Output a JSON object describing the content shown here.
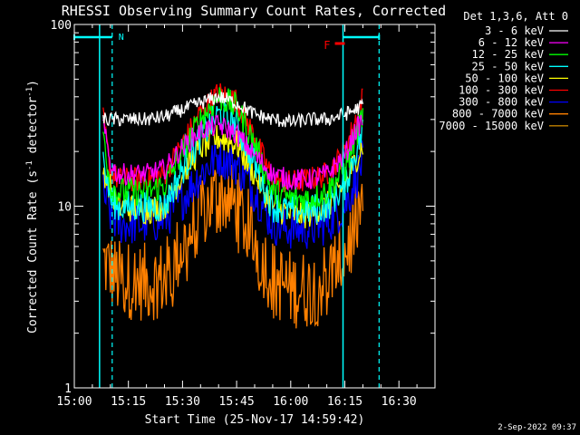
{
  "chart_data": {
    "type": "line",
    "title": "RHESSI Observing Summary Count Rates, Corrected",
    "xlabel": "Start Time (25-Nov-17 14:59:42)",
    "ylabel_main": "Corrected Count Rate (s",
    "ylabel_sup1": "-1",
    "ylabel_mid": " detector",
    "ylabel_sup2": "-1",
    "ylabel_end": ")",
    "yscale": "log",
    "ylim": [
      1,
      100
    ],
    "xlim_minutes": [
      0,
      100
    ],
    "x_ticks": [
      {
        "label": "15:00",
        "minutes": 0
      },
      {
        "label": "15:15",
        "minutes": 15
      },
      {
        "label": "15:30",
        "minutes": 30
      },
      {
        "label": "15:45",
        "minutes": 45
      },
      {
        "label": "16:00",
        "minutes": 60
      },
      {
        "label": "16:15",
        "minutes": 75
      },
      {
        "label": "16:30",
        "minutes": 90
      }
    ],
    "y_ticks": [
      {
        "label": "1",
        "value": 1
      },
      {
        "label": "10",
        "value": 10
      },
      {
        "label": "100",
        "value": 100
      }
    ],
    "legend_title": "Det 1,3,6, Att 0",
    "legend_position": "right",
    "series": [
      {
        "name": "3 - 6 keV",
        "color": "#ffffff",
        "points": [
          [
            8,
            30
          ],
          [
            12,
            30
          ],
          [
            20,
            30
          ],
          [
            25,
            31
          ],
          [
            30,
            34
          ],
          [
            35,
            37
          ],
          [
            40,
            40
          ],
          [
            45,
            37
          ],
          [
            50,
            32
          ],
          [
            55,
            30
          ],
          [
            60,
            29
          ],
          [
            65,
            30
          ],
          [
            70,
            30
          ],
          [
            75,
            32
          ],
          [
            78,
            34
          ],
          [
            80,
            36
          ]
        ]
      },
      {
        "name": "6 - 12 keV",
        "color": "#ff00ff",
        "points": [
          [
            8,
            28
          ],
          [
            10,
            17
          ],
          [
            12,
            15
          ],
          [
            20,
            15
          ],
          [
            25,
            16
          ],
          [
            30,
            21
          ],
          [
            35,
            26
          ],
          [
            40,
            28
          ],
          [
            45,
            25
          ],
          [
            50,
            19
          ],
          [
            55,
            15
          ],
          [
            60,
            14
          ],
          [
            65,
            14
          ],
          [
            70,
            15
          ],
          [
            75,
            19
          ],
          [
            78,
            26
          ],
          [
            80,
            30
          ]
        ]
      },
      {
        "name": "12 - 25 keV",
        "color": "#00ff00",
        "points": [
          [
            8,
            26
          ],
          [
            10,
            13
          ],
          [
            12,
            12
          ],
          [
            20,
            12
          ],
          [
            25,
            13
          ],
          [
            30,
            20
          ],
          [
            35,
            30
          ],
          [
            40,
            40
          ],
          [
            45,
            35
          ],
          [
            50,
            22
          ],
          [
            55,
            12
          ],
          [
            60,
            11
          ],
          [
            65,
            11
          ],
          [
            70,
            12
          ],
          [
            75,
            16
          ],
          [
            78,
            24
          ],
          [
            80,
            32
          ]
        ]
      },
      {
        "name": "25 - 50 keV",
        "color": "#00ffff",
        "points": [
          [
            8,
            18
          ],
          [
            10,
            11
          ],
          [
            12,
            10
          ],
          [
            20,
            10
          ],
          [
            25,
            10
          ],
          [
            30,
            16
          ],
          [
            35,
            24
          ],
          [
            40,
            32
          ],
          [
            45,
            28
          ],
          [
            50,
            17
          ],
          [
            55,
            10
          ],
          [
            60,
            9.5
          ],
          [
            65,
            9.5
          ],
          [
            70,
            10
          ],
          [
            75,
            13
          ],
          [
            78,
            20
          ],
          [
            80,
            26
          ]
        ]
      },
      {
        "name": "50 - 100 keV",
        "color": "#ffff00",
        "points": [
          [
            8,
            16
          ],
          [
            12,
            10
          ],
          [
            20,
            9.5
          ],
          [
            25,
            10
          ],
          [
            30,
            15
          ],
          [
            35,
            21
          ],
          [
            40,
            24
          ],
          [
            45,
            22
          ],
          [
            50,
            15
          ],
          [
            55,
            10
          ],
          [
            60,
            9
          ],
          [
            65,
            9
          ],
          [
            70,
            10
          ],
          [
            75,
            13
          ],
          [
            78,
            18
          ],
          [
            80,
            22
          ]
        ]
      },
      {
        "name": "100 - 300 keV",
        "color": "#ff0000",
        "points": [
          [
            8,
            30
          ],
          [
            10,
            16
          ],
          [
            12,
            14
          ],
          [
            20,
            14
          ],
          [
            25,
            15
          ],
          [
            30,
            22
          ],
          [
            35,
            33
          ],
          [
            40,
            42
          ],
          [
            45,
            38
          ],
          [
            50,
            24
          ],
          [
            55,
            14
          ],
          [
            60,
            13.5
          ],
          [
            65,
            14
          ],
          [
            70,
            15
          ],
          [
            75,
            20
          ],
          [
            78,
            30
          ],
          [
            80,
            40
          ]
        ]
      },
      {
        "name": "300 - 800 keV",
        "color": "#0000ff",
        "points": [
          [
            8,
            12
          ],
          [
            10,
            9
          ],
          [
            12,
            8
          ],
          [
            20,
            8
          ],
          [
            25,
            8.5
          ],
          [
            30,
            11
          ],
          [
            35,
            15
          ],
          [
            40,
            19
          ],
          [
            45,
            17
          ],
          [
            50,
            12
          ],
          [
            55,
            8
          ],
          [
            60,
            7.5
          ],
          [
            65,
            7.5
          ],
          [
            70,
            8
          ],
          [
            75,
            10
          ],
          [
            78,
            14
          ],
          [
            80,
            18
          ]
        ]
      },
      {
        "name": "800 - 7000 keV",
        "color": "#ff8000",
        "points": [
          [
            8,
            5
          ],
          [
            10,
            4.5
          ],
          [
            12,
            4
          ],
          [
            20,
            3.8
          ],
          [
            25,
            4
          ],
          [
            30,
            6
          ],
          [
            35,
            9
          ],
          [
            40,
            12
          ],
          [
            45,
            10
          ],
          [
            50,
            6.5
          ],
          [
            55,
            4
          ],
          [
            60,
            3.5
          ],
          [
            65,
            3.5
          ],
          [
            70,
            4
          ],
          [
            75,
            5.5
          ],
          [
            78,
            8
          ],
          [
            80,
            11
          ]
        ]
      },
      {
        "name": "7000 - 15000 keV",
        "color": "#c08000",
        "points": []
      }
    ],
    "attenuator_lines": [
      {
        "label": "N",
        "color": "#00ffff",
        "start_minutes": 7,
        "end_minutes": 10.5
      },
      {
        "label": "",
        "color": "#00ffff",
        "start_minutes": 74.5,
        "end_minutes": 84.5
      }
    ],
    "flare_marker": {
      "label": "F",
      "color": "#ff0000",
      "minutes": 73
    },
    "timestamp": "2-Sep-2022 09:37"
  }
}
